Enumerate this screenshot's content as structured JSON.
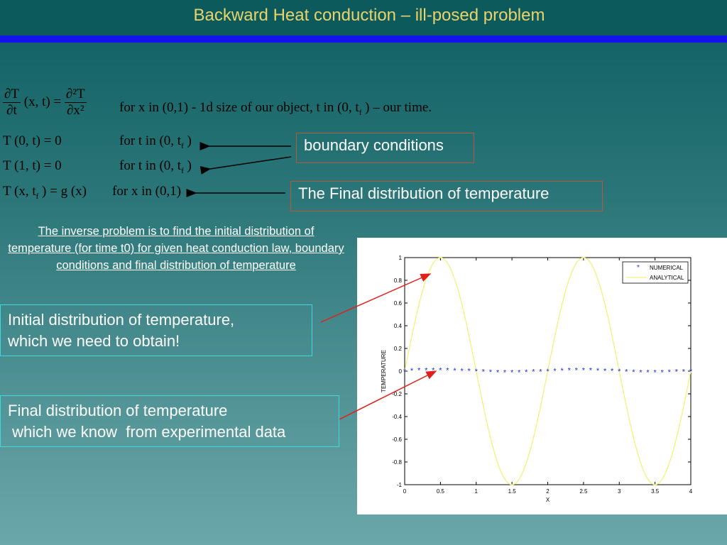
{
  "slide": {
    "title": "Backward Heat conduction – ill-posed problem"
  },
  "equations": {
    "pde_lhs_num": "∂T",
    "pde_lhs_den": "∂t",
    "pde_args": "(x, t) =",
    "pde_rhs_num": "∂²T",
    "pde_rhs_den": "∂x²",
    "pde_desc_prefix": "for x  in  (0,1) - 1d size  of  our object, t in  (0, t",
    "pde_desc_sub": "f",
    "pde_desc_suffix": " ) – our time.",
    "bc0_lhs": "T (0, t) = 0",
    "bc0_desc_prefix": "for  t  in  (0, t",
    "bc0_desc_sub": "f",
    "bc0_desc_suffix": " )",
    "bc1_lhs": "T (1, t) = 0",
    "bc1_desc_prefix": "for  t  in  (0, t",
    "bc1_desc_sub": "f",
    "bc1_desc_suffix": " )",
    "final_lhs_prefix": "T (x, t",
    "final_lhs_sub": "f",
    "final_lhs_suffix": " ) = g (x)",
    "final_desc": "for x  in  (0,1)"
  },
  "callouts": {
    "boundary": "boundary conditions",
    "final": "The Final distribution of temperature "
  },
  "inverse_text": "The inverse problem is to find the initial distribution of temperature (for time t0) for given heat conduction law, boundary conditions and final  distribution of temperature",
  "box_initial": {
    "line1": "Initial  distribution of temperature,",
    "line2": "which we need to obtain!"
  },
  "box_final": {
    "line1": "Final distribution of temperature",
    "line2": " which we know  from experimental data"
  },
  "colors": {
    "analytical": "#f2f27a",
    "numerical": "#1a2fd6",
    "callout_border": "#b45a3a",
    "box_border": "#3dd8e0",
    "arrow_red": "#e0201b"
  },
  "chart_data": {
    "type": "line",
    "xlabel": "X",
    "ylabel": "TEMPERATURE",
    "xlim": [
      0,
      4
    ],
    "ylim": [
      -1,
      1
    ],
    "x_ticks": [
      0,
      0.5,
      1,
      1.5,
      2,
      2.5,
      3,
      3.5,
      4
    ],
    "x_tick_labels": [
      "0",
      "0.5",
      "1",
      "1.5",
      "2",
      "2.5",
      "3",
      "3.5",
      "4"
    ],
    "y_ticks": [
      -1,
      -0.8,
      -0.6,
      -0.4,
      -0.2,
      0,
      0.2,
      0.4,
      0.6,
      0.8,
      1
    ],
    "y_tick_labels": [
      "-1",
      "-0.8",
      "-0.6",
      "-0.4",
      "-0.2",
      "0",
      "0.2",
      "0.4",
      "0.6",
      "0.8",
      "1"
    ],
    "legend_position": "top-right",
    "series": [
      {
        "name": "NUMERICAL",
        "marker": "*",
        "x": [
          0,
          0.1,
          0.2,
          0.3,
          0.4,
          0.5,
          0.6,
          0.7,
          0.8,
          0.9,
          1.0,
          1.1,
          1.2,
          1.3,
          1.4,
          1.5,
          1.6,
          1.7,
          1.8,
          1.9,
          2.0,
          2.1,
          2.2,
          2.3,
          2.4,
          2.5,
          2.6,
          2.7,
          2.8,
          2.9,
          3.0,
          3.1,
          3.2,
          3.3,
          3.4,
          3.5,
          3.6,
          3.7,
          3.8,
          3.9,
          4.0
        ],
        "y": [
          0,
          0.005,
          0.008,
          0.009,
          0.01,
          0.01,
          0.009,
          0.007,
          0.004,
          0.002,
          0,
          -0.003,
          -0.006,
          -0.008,
          -0.009,
          -0.01,
          -0.009,
          -0.007,
          -0.004,
          -0.002,
          0,
          0.003,
          0.006,
          0.008,
          0.009,
          0.01,
          0.009,
          0.007,
          0.004,
          0.002,
          0,
          -0.003,
          -0.006,
          -0.008,
          -0.009,
          -0.01,
          -0.009,
          -0.007,
          -0.004,
          -0.002,
          0
        ]
      },
      {
        "name": "ANALYTICAL",
        "function": "sin(pi*x)",
        "x": [
          0,
          0.25,
          0.5,
          0.75,
          1,
          1.25,
          1.5,
          1.75,
          2,
          2.25,
          2.5,
          2.75,
          3,
          3.25,
          3.5,
          3.75,
          4
        ],
        "y": [
          0,
          0.707,
          1,
          0.707,
          0,
          -0.707,
          -1,
          -0.707,
          0,
          0.707,
          1,
          0.707,
          0,
          -0.707,
          -1,
          -0.707,
          0
        ]
      }
    ]
  }
}
